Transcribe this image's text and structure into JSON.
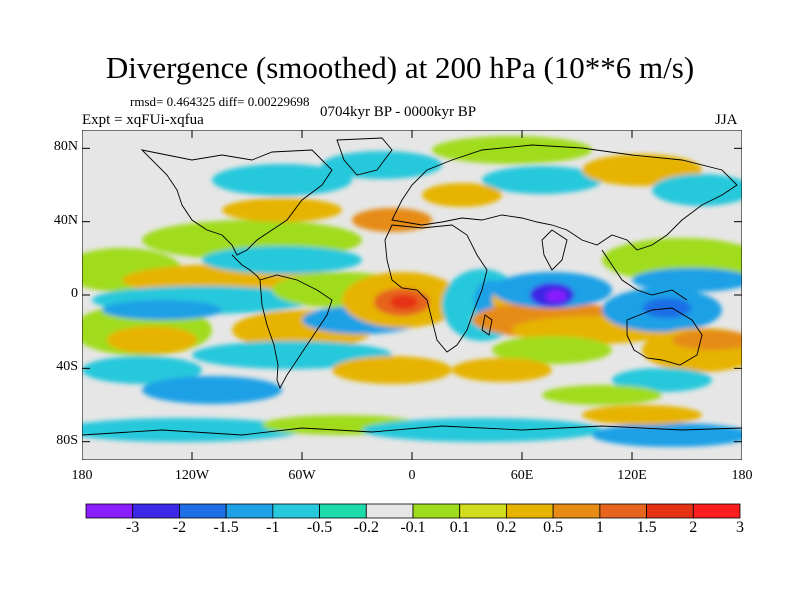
{
  "title": "Divergence (smoothed) at 200 hPa (10**6 m/s)",
  "stats_line": "rmsd= 0.464325 diff= 0.00229698",
  "experiment_line": "Expt = xqFUi-xqfua",
  "period_line": "0704kyr BP - 0000kyr BP",
  "season": "JJA",
  "lat_ticks": [
    "80N",
    "40N",
    "0",
    "40S",
    "80S"
  ],
  "lat_values": [
    80,
    40,
    0,
    -40,
    -80
  ],
  "lon_ticks": [
    "180",
    "120W",
    "60W",
    "0",
    "60E",
    "120E",
    "180"
  ],
  "lon_values": [
    -180,
    -120,
    -60,
    0,
    60,
    120,
    180
  ],
  "colorbar": {
    "colors": [
      "#8b1eff",
      "#3c28e6",
      "#1e6ee6",
      "#1ea0e6",
      "#28c8dc",
      "#1edcaa",
      "#e6e6e6",
      "#a0dc1e",
      "#d2dc1e",
      "#e6b400",
      "#e68c14",
      "#e6641e",
      "#e63214",
      "#ff1e1e"
    ],
    "labels": [
      "-3",
      "-2",
      "-1.5",
      "-1",
      "-0.5",
      "-0.2",
      "-0.1",
      "0.1",
      "0.2",
      "0.5",
      "1",
      "1.5",
      "2",
      "3"
    ],
    "levels": [
      -3,
      -2,
      -1.5,
      -1,
      -0.5,
      -0.2,
      -0.1,
      0.1,
      0.2,
      0.5,
      1,
      1.5,
      2,
      3
    ]
  }
}
